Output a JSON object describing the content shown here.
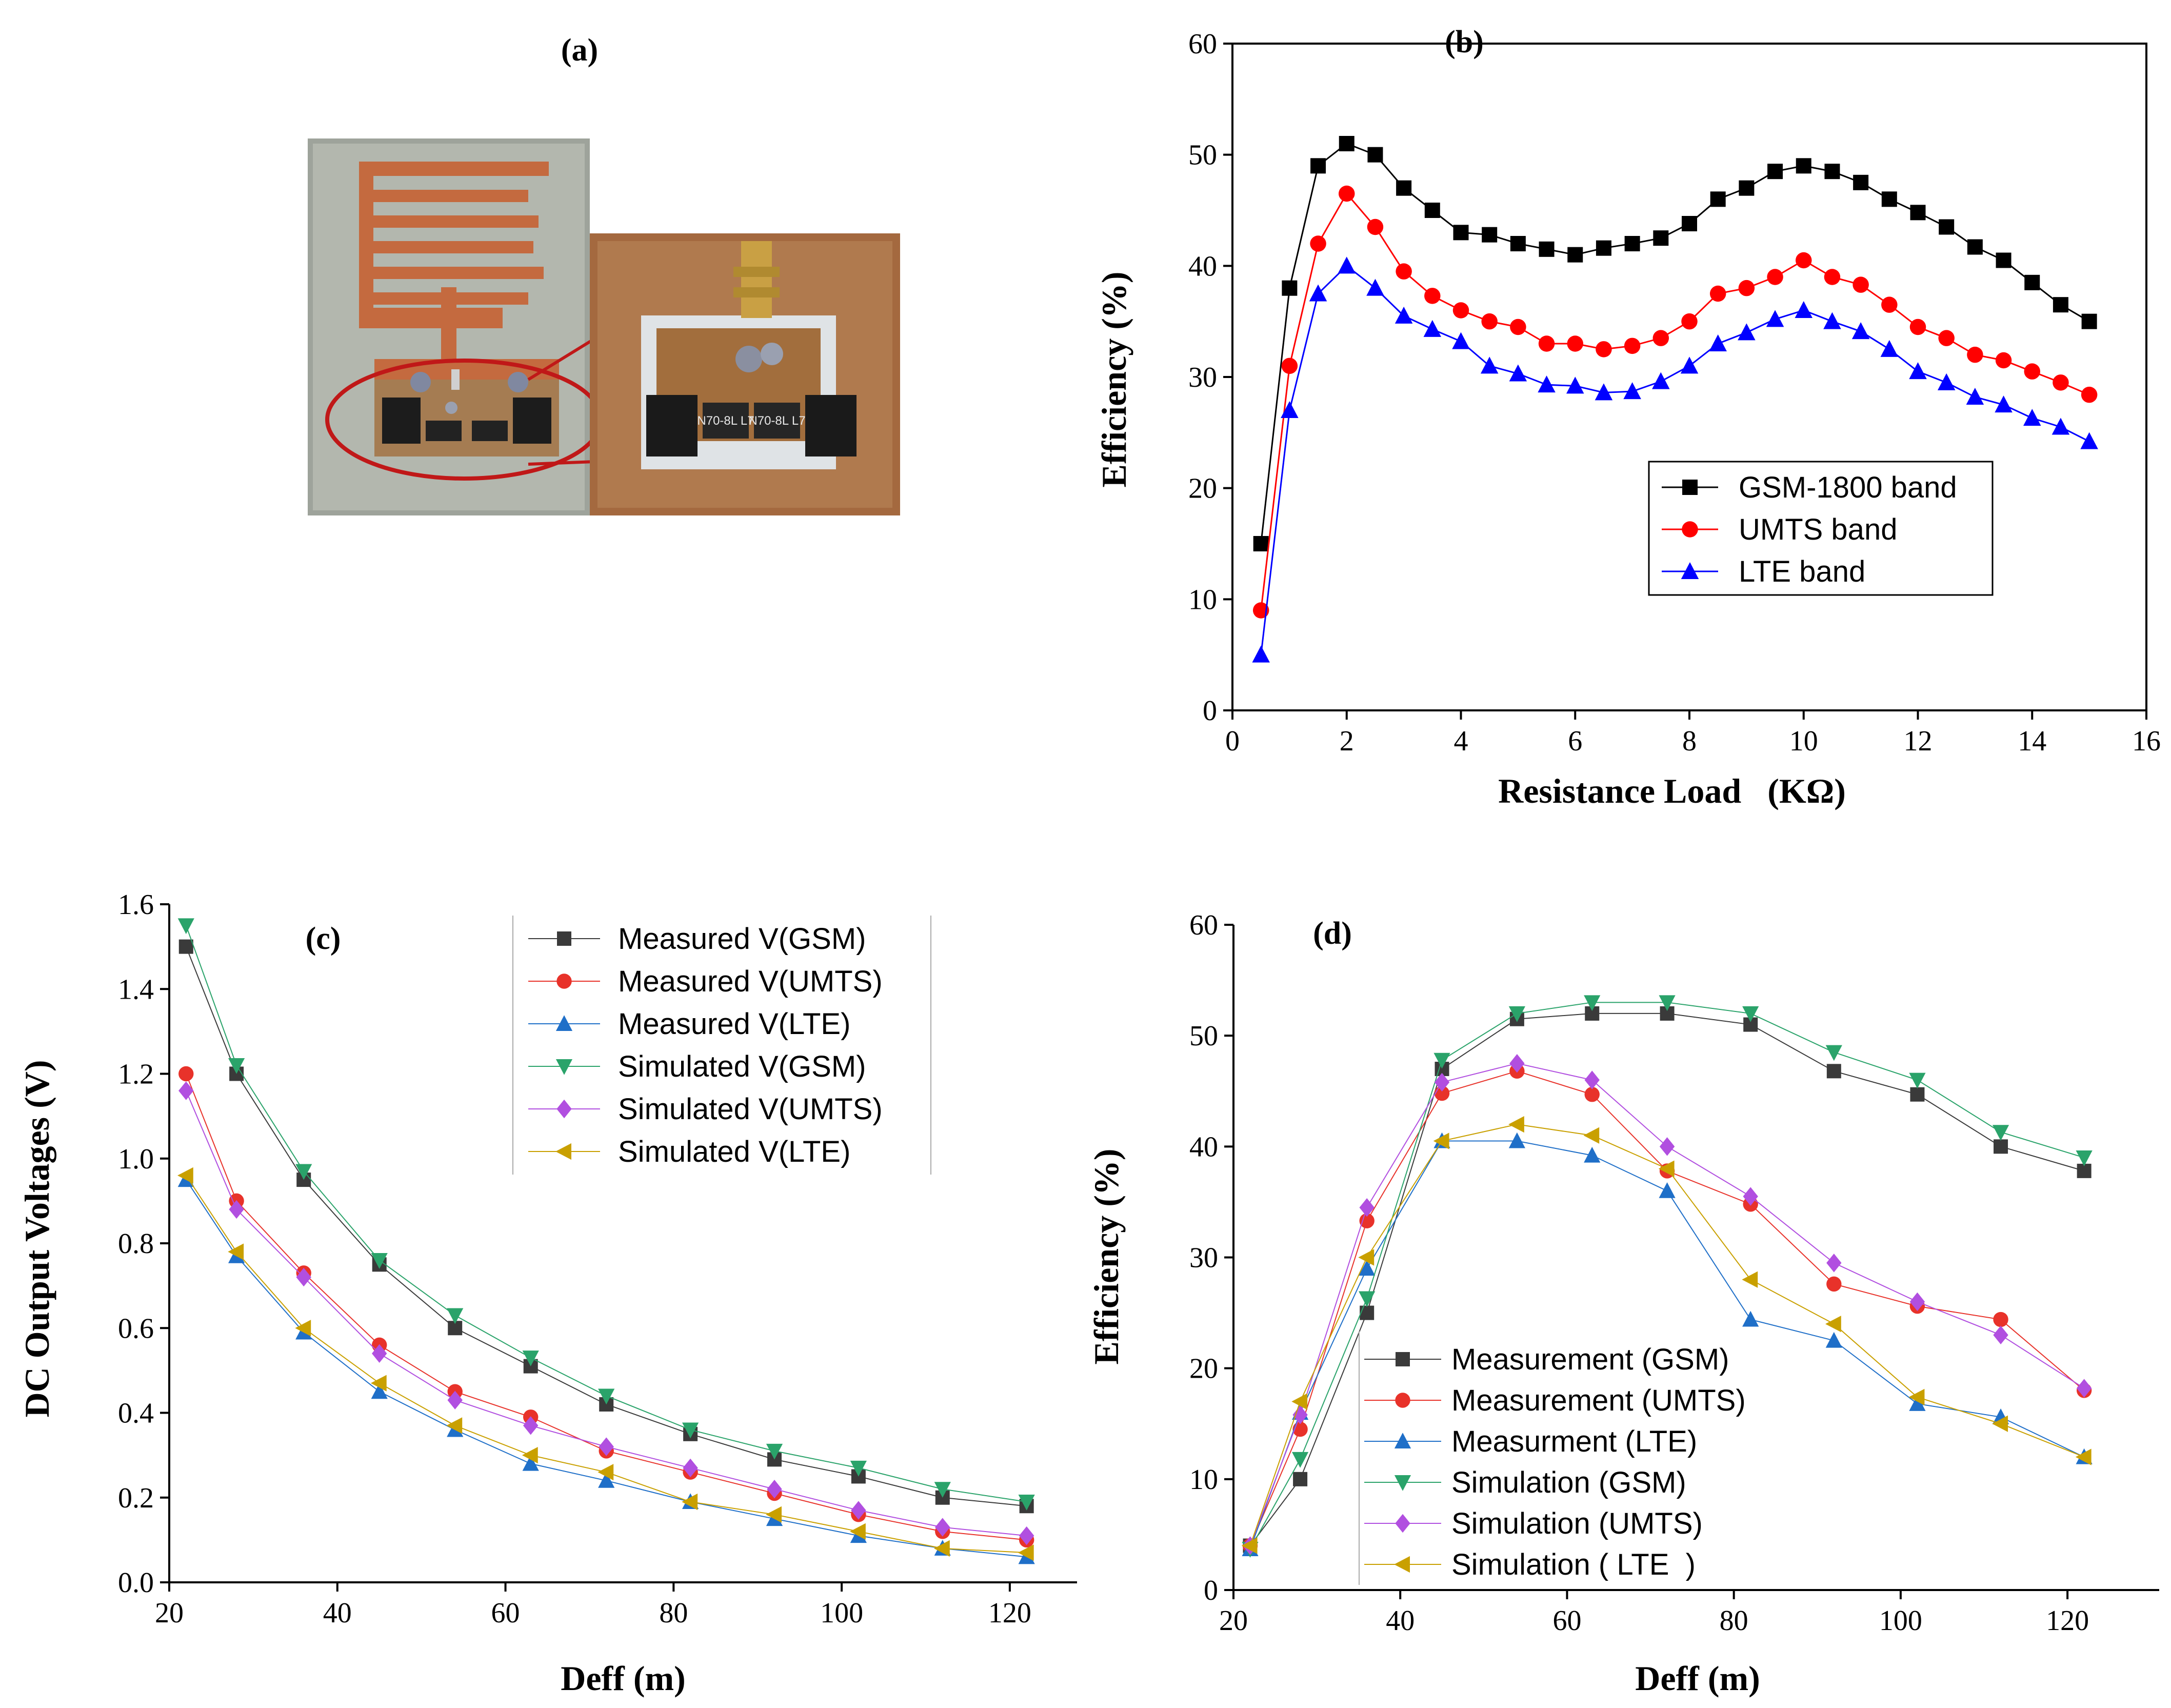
{
  "panel_labels": {
    "a": "(a)",
    "b": "(b)",
    "c": "(c)",
    "d": "(d)"
  },
  "photo": {
    "description_icon": "pcb-antenna-rectifier-photo-icon",
    "component_marking_left": "N70-8L L7",
    "component_marking_right": "N70-8L L7"
  },
  "chart_data": [
    {
      "panel": "b",
      "type": "line",
      "title": "",
      "xlabel": "Resistance Load   (KΩ)",
      "ylabel": "Efficiency (%)",
      "xlim": [
        0,
        16
      ],
      "ylim": [
        0,
        60
      ],
      "xticks": [
        "0",
        "2",
        "4",
        "6",
        "8",
        "10",
        "12",
        "14",
        "16"
      ],
      "yticks": [
        "0",
        "10",
        "20",
        "30",
        "40",
        "50",
        "60"
      ],
      "x": [
        0.5,
        1,
        1.5,
        2,
        2.5,
        3,
        3.5,
        4,
        4.5,
        5,
        5.5,
        6,
        6.5,
        7,
        7.5,
        8,
        8.5,
        9,
        9.5,
        10,
        10.5,
        11,
        11.5,
        12,
        12.5,
        13,
        13.5,
        14,
        14.5,
        15
      ],
      "legend_position": "center-right",
      "series": [
        {
          "name": "GSM-1800 band",
          "color": "#000000",
          "marker": "square",
          "values": [
            15,
            38,
            49,
            51,
            50,
            47,
            45,
            43,
            42.8,
            42,
            41.5,
            41,
            41.6,
            42,
            42.5,
            43.8,
            46,
            47,
            48.5,
            49,
            48.5,
            47.5,
            46,
            44.8,
            43.5,
            41.7,
            40.5,
            38.5,
            36.5,
            35
          ]
        },
        {
          "name": "UMTS band",
          "color": "#ff0000",
          "marker": "circle",
          "values": [
            9,
            31,
            42,
            46.5,
            43.5,
            39.5,
            37.3,
            36,
            35,
            34.5,
            33,
            33,
            32.5,
            32.8,
            33.5,
            35,
            37.5,
            38,
            39,
            40.5,
            39,
            38.3,
            36.5,
            34.5,
            33.5,
            32,
            31.5,
            30.5,
            29.5,
            28.4
          ]
        },
        {
          "name": "LTE band",
          "color": "#0000ff",
          "marker": "triangle-up",
          "values": [
            5,
            27,
            37.5,
            40,
            38,
            35.5,
            34.3,
            33.2,
            31,
            30.3,
            29.3,
            29.2,
            28.6,
            28.7,
            29.6,
            31,
            33,
            34,
            35.2,
            36,
            35,
            34.1,
            32.5,
            30.5,
            29.5,
            28.2,
            27.5,
            26.3,
            25.5,
            24.2
          ]
        }
      ]
    },
    {
      "panel": "c",
      "type": "line",
      "title": "",
      "xlabel": "Deff (m)",
      "ylabel": "DC Output Voltages (V)",
      "xlim": [
        20,
        128
      ],
      "ylim": [
        0,
        1.6
      ],
      "xticks": [
        "20",
        "40",
        "60",
        "80",
        "100",
        "120"
      ],
      "yticks": [
        "0.0",
        "0.2",
        "0.4",
        "0.6",
        "0.8",
        "1.0",
        "1.2",
        "1.4",
        "1.6"
      ],
      "x": [
        22,
        28,
        36,
        45,
        54,
        63,
        72,
        82,
        92,
        102,
        112,
        122
      ],
      "legend_position": "top-right",
      "series": [
        {
          "name": "Measured V(GSM)",
          "color": "#3a3a3a",
          "marker": "square",
          "values": [
            1.5,
            1.2,
            0.95,
            0.75,
            0.6,
            0.51,
            0.42,
            0.35,
            0.29,
            0.25,
            0.2,
            0.18
          ]
        },
        {
          "name": "Measured V(UMTS)",
          "color": "#e8322a",
          "marker": "circle",
          "values": [
            1.2,
            0.9,
            0.73,
            0.56,
            0.45,
            0.39,
            0.31,
            0.26,
            0.21,
            0.16,
            0.12,
            0.1
          ]
        },
        {
          "name": "Measured V(LTE)",
          "color": "#1f6fc8",
          "marker": "triangle-up",
          "values": [
            0.95,
            0.77,
            0.59,
            0.45,
            0.36,
            0.28,
            0.24,
            0.19,
            0.15,
            0.11,
            0.08,
            0.06
          ]
        },
        {
          "name": "Simulated V(GSM)",
          "color": "#2aa36a",
          "marker": "triangle-down",
          "values": [
            1.55,
            1.22,
            0.97,
            0.76,
            0.63,
            0.53,
            0.44,
            0.36,
            0.31,
            0.27,
            0.22,
            0.19
          ]
        },
        {
          "name": "Simulated V(UMTS)",
          "color": "#b14fe0",
          "marker": "diamond",
          "values": [
            1.16,
            0.88,
            0.72,
            0.54,
            0.43,
            0.37,
            0.32,
            0.27,
            0.22,
            0.17,
            0.13,
            0.11
          ]
        },
        {
          "name": "Simulated V(LTE)",
          "color": "#c9a000",
          "marker": "triangle-left",
          "values": [
            0.96,
            0.78,
            0.6,
            0.47,
            0.37,
            0.3,
            0.26,
            0.19,
            0.16,
            0.12,
            0.08,
            0.07
          ]
        }
      ]
    },
    {
      "panel": "d",
      "type": "line",
      "title": "",
      "xlabel": "Deff (m)",
      "ylabel": "Efficiency (%)",
      "xlim": [
        20,
        131
      ],
      "ylim": [
        0,
        60
      ],
      "xticks": [
        "20",
        "40",
        "60",
        "80",
        "100",
        "120"
      ],
      "yticks": [
        "0",
        "10",
        "20",
        "30",
        "40",
        "50",
        "60"
      ],
      "x": [
        22,
        28,
        36,
        45,
        54,
        63,
        72,
        82,
        92,
        102,
        112,
        122
      ],
      "legend_position": "bottom-left",
      "series": [
        {
          "name": "Measurement (GSM)",
          "color": "#3a3a3a",
          "marker": "square",
          "values": [
            4,
            10,
            25,
            47,
            51.5,
            52,
            52,
            51,
            46.8,
            44.7,
            40,
            37.8
          ]
        },
        {
          "name": "Measurement (UMTS)",
          "color": "#e8322a",
          "marker": "circle",
          "values": [
            4,
            14.5,
            33.3,
            44.8,
            46.8,
            44.7,
            37.8,
            34.8,
            27.6,
            25.6,
            24.4,
            18
          ]
        },
        {
          "name": "Measurment (LTE)",
          "color": "#1f6fc8",
          "marker": "triangle-up",
          "values": [
            3.7,
            16,
            29,
            40.5,
            40.5,
            39.2,
            36,
            24.4,
            22.5,
            16.8,
            15.6,
            12
          ]
        },
        {
          "name": "Simulation (GSM)",
          "color": "#2aa36a",
          "marker": "triangle-down",
          "values": [
            3.7,
            11.8,
            26.3,
            47.8,
            52,
            53,
            53,
            52,
            48.5,
            46,
            41.3,
            39
          ]
        },
        {
          "name": "Simulation (UMTS)",
          "color": "#b14fe0",
          "marker": "diamond",
          "values": [
            4,
            15.8,
            34.5,
            45.8,
            47.5,
            46,
            40,
            35.5,
            29.5,
            26,
            23,
            18.2
          ]
        },
        {
          "name": "Simulation ( LTE  )",
          "color": "#c9a000",
          "marker": "triangle-left",
          "values": [
            4,
            17,
            30,
            40.5,
            42,
            41,
            38,
            28,
            24,
            17.4,
            15,
            12
          ]
        }
      ]
    }
  ]
}
